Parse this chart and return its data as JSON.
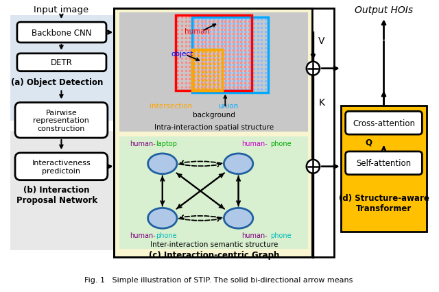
{
  "title": "Fig. 1   Simple illustration of STIP. The solid bi-directional arrow means",
  "bg_color": "#ffffff",
  "light_blue_bg": "#dce6f1",
  "light_gray_bg": "#e8e8e8",
  "light_yellow_bg": "#f5f5dc",
  "light_green_bg": "#d8f0d0",
  "gold_bg": "#FFC000",
  "label_a": "(a) Object Detection",
  "label_b": "(b) Interaction\nProposal Network",
  "label_c": "(c) Interaction-centric Graph",
  "label_d": "(d) Structure-aware\nTransformer",
  "input_label": "Input image",
  "output_label": "Output HOIs",
  "intra_label": "Intra-interaction spatial structure",
  "inter_label": "Inter-interaction semantic structure",
  "V_label": "V",
  "K_label": "K",
  "Q_label": "Q"
}
